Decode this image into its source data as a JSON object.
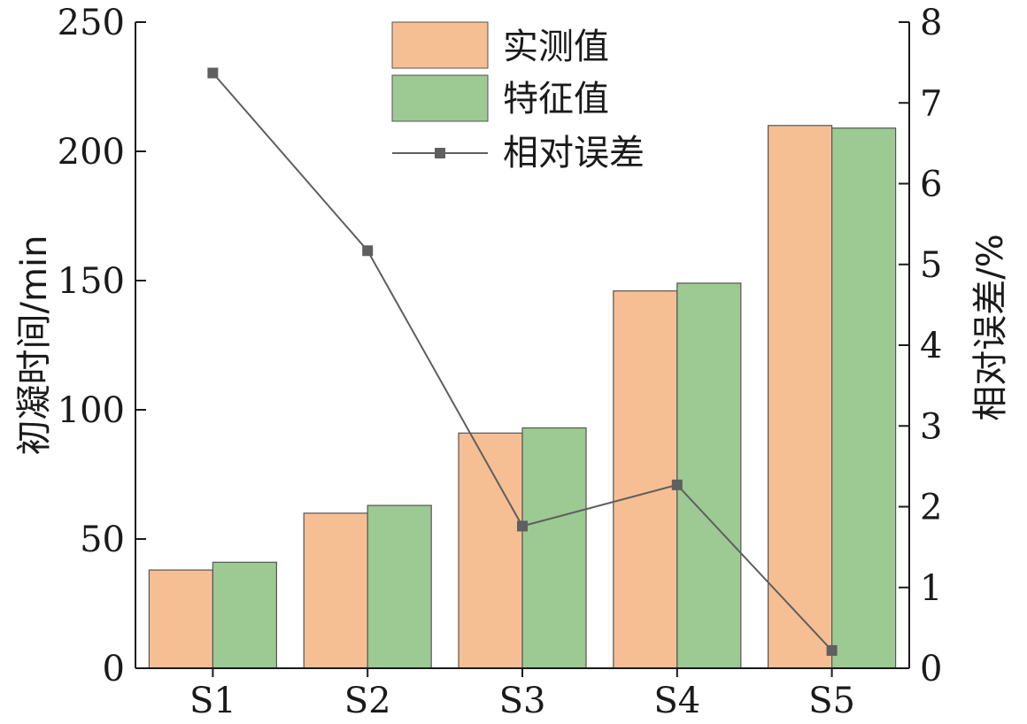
{
  "chart_data": {
    "type": "bar",
    "categories": [
      "S1",
      "S2",
      "S3",
      "S4",
      "S5"
    ],
    "series": [
      {
        "name": "实测值",
        "axis": "left",
        "kind": "bar",
        "color": "#f6bf93",
        "values": [
          38,
          60,
          91,
          146,
          210
        ]
      },
      {
        "name": "特征值",
        "axis": "left",
        "kind": "bar",
        "color": "#9dc993",
        "values": [
          41,
          63,
          93,
          149,
          209
        ]
      },
      {
        "name": "相对误差",
        "axis": "right",
        "kind": "line",
        "color": "#5f5f5f",
        "values": [
          7.37,
          5.17,
          1.76,
          2.27,
          0.22
        ]
      }
    ],
    "ylabel": "初凝时间/min",
    "y2label": "相对误差/%",
    "ylim": [
      0,
      250
    ],
    "y2lim": [
      0,
      8
    ],
    "yticks": [
      "0",
      "50",
      "100",
      "150",
      "200",
      "250"
    ],
    "y2ticks": [
      "0",
      "1",
      "2",
      "3",
      "4",
      "5",
      "6",
      "7",
      "8"
    ],
    "grid": false,
    "legend_position": "top-center"
  }
}
